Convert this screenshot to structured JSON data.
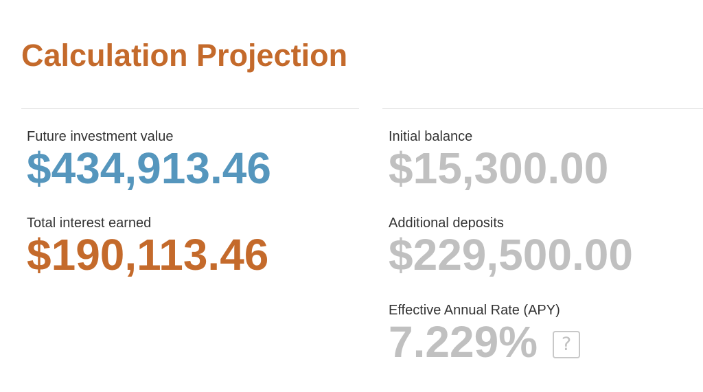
{
  "page": {
    "title": "Calculation Projection"
  },
  "results": {
    "future_value": {
      "label": "Future investment value",
      "value": "$434,913.46"
    },
    "total_interest": {
      "label": "Total interest earned",
      "value": "$190,113.46"
    },
    "initial_balance": {
      "label": "Initial balance",
      "value": "$15,300.00"
    },
    "additional_deposits": {
      "label": "Additional deposits",
      "value": "$229,500.00"
    },
    "apy": {
      "label": "Effective Annual Rate (APY)",
      "value": "7.229%",
      "help_glyph": "?",
      "help_icon": "question-mark-icon"
    }
  },
  "colors": {
    "accent_orange": "#c46a2b",
    "accent_blue": "#5596bd",
    "muted_gray": "#c0c0c0"
  }
}
